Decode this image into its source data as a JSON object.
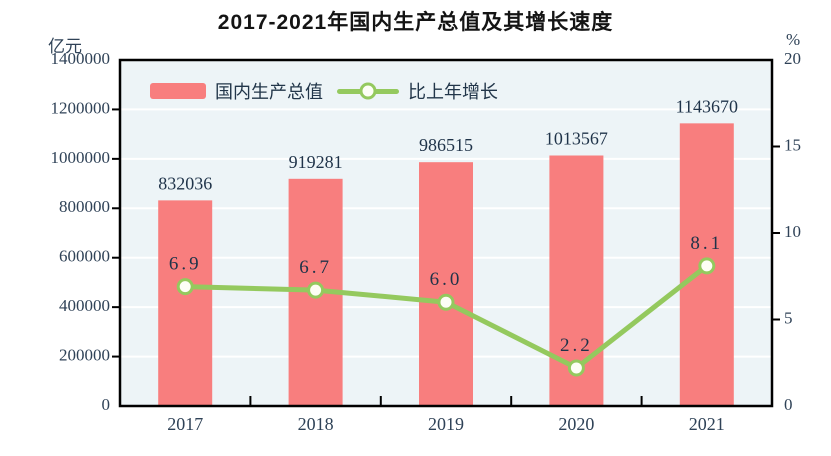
{
  "title": "2017-2021年国内生产总值及其增长速度",
  "axes": {
    "left_unit": "亿元",
    "right_unit": "%"
  },
  "legend": [
    {
      "label": "国内生产总值",
      "type": "bar"
    },
    {
      "label": "比上年增长",
      "type": "line"
    }
  ],
  "colors": {
    "bar": "#f87e7e",
    "line": "#94c95e",
    "marker_fill": "#fdfef5",
    "plot_bg": "#edf4f7",
    "grid": "#ffffff",
    "frame": "#000000",
    "tick_text": "#2f4257",
    "value_text": "#1f3349",
    "title_text": "#141414"
  },
  "chart_data": {
    "type": "combo",
    "categories": [
      "2017",
      "2018",
      "2019",
      "2020",
      "2021"
    ],
    "series": [
      {
        "name": "国内生产总值",
        "type": "bar",
        "axis": "left",
        "values": [
          832036,
          919281,
          986515,
          1013567,
          1143670
        ],
        "labels": [
          "832036",
          "919281",
          "986515",
          "1013567",
          "1143670"
        ]
      },
      {
        "name": "比上年增长",
        "type": "line",
        "axis": "right",
        "values": [
          6.9,
          6.7,
          6.0,
          2.2,
          8.1
        ],
        "labels": [
          "6.9",
          "6.7",
          "6.0",
          "2.2",
          "8.1"
        ]
      }
    ],
    "left_axis": {
      "unit": "亿元",
      "min": 0,
      "max": 1400000,
      "tick_step": 200000,
      "tick_labels": [
        "1400000",
        "1200000",
        "1000000",
        "800000",
        "600000",
        "400000",
        "200000",
        "0"
      ]
    },
    "right_axis": {
      "unit": "%",
      "min": 0,
      "max": 20,
      "tick_step": 5,
      "tick_labels": [
        "20",
        "15",
        "10",
        "5",
        "0"
      ]
    },
    "grid": true,
    "legend_position": "top-left-inside"
  }
}
